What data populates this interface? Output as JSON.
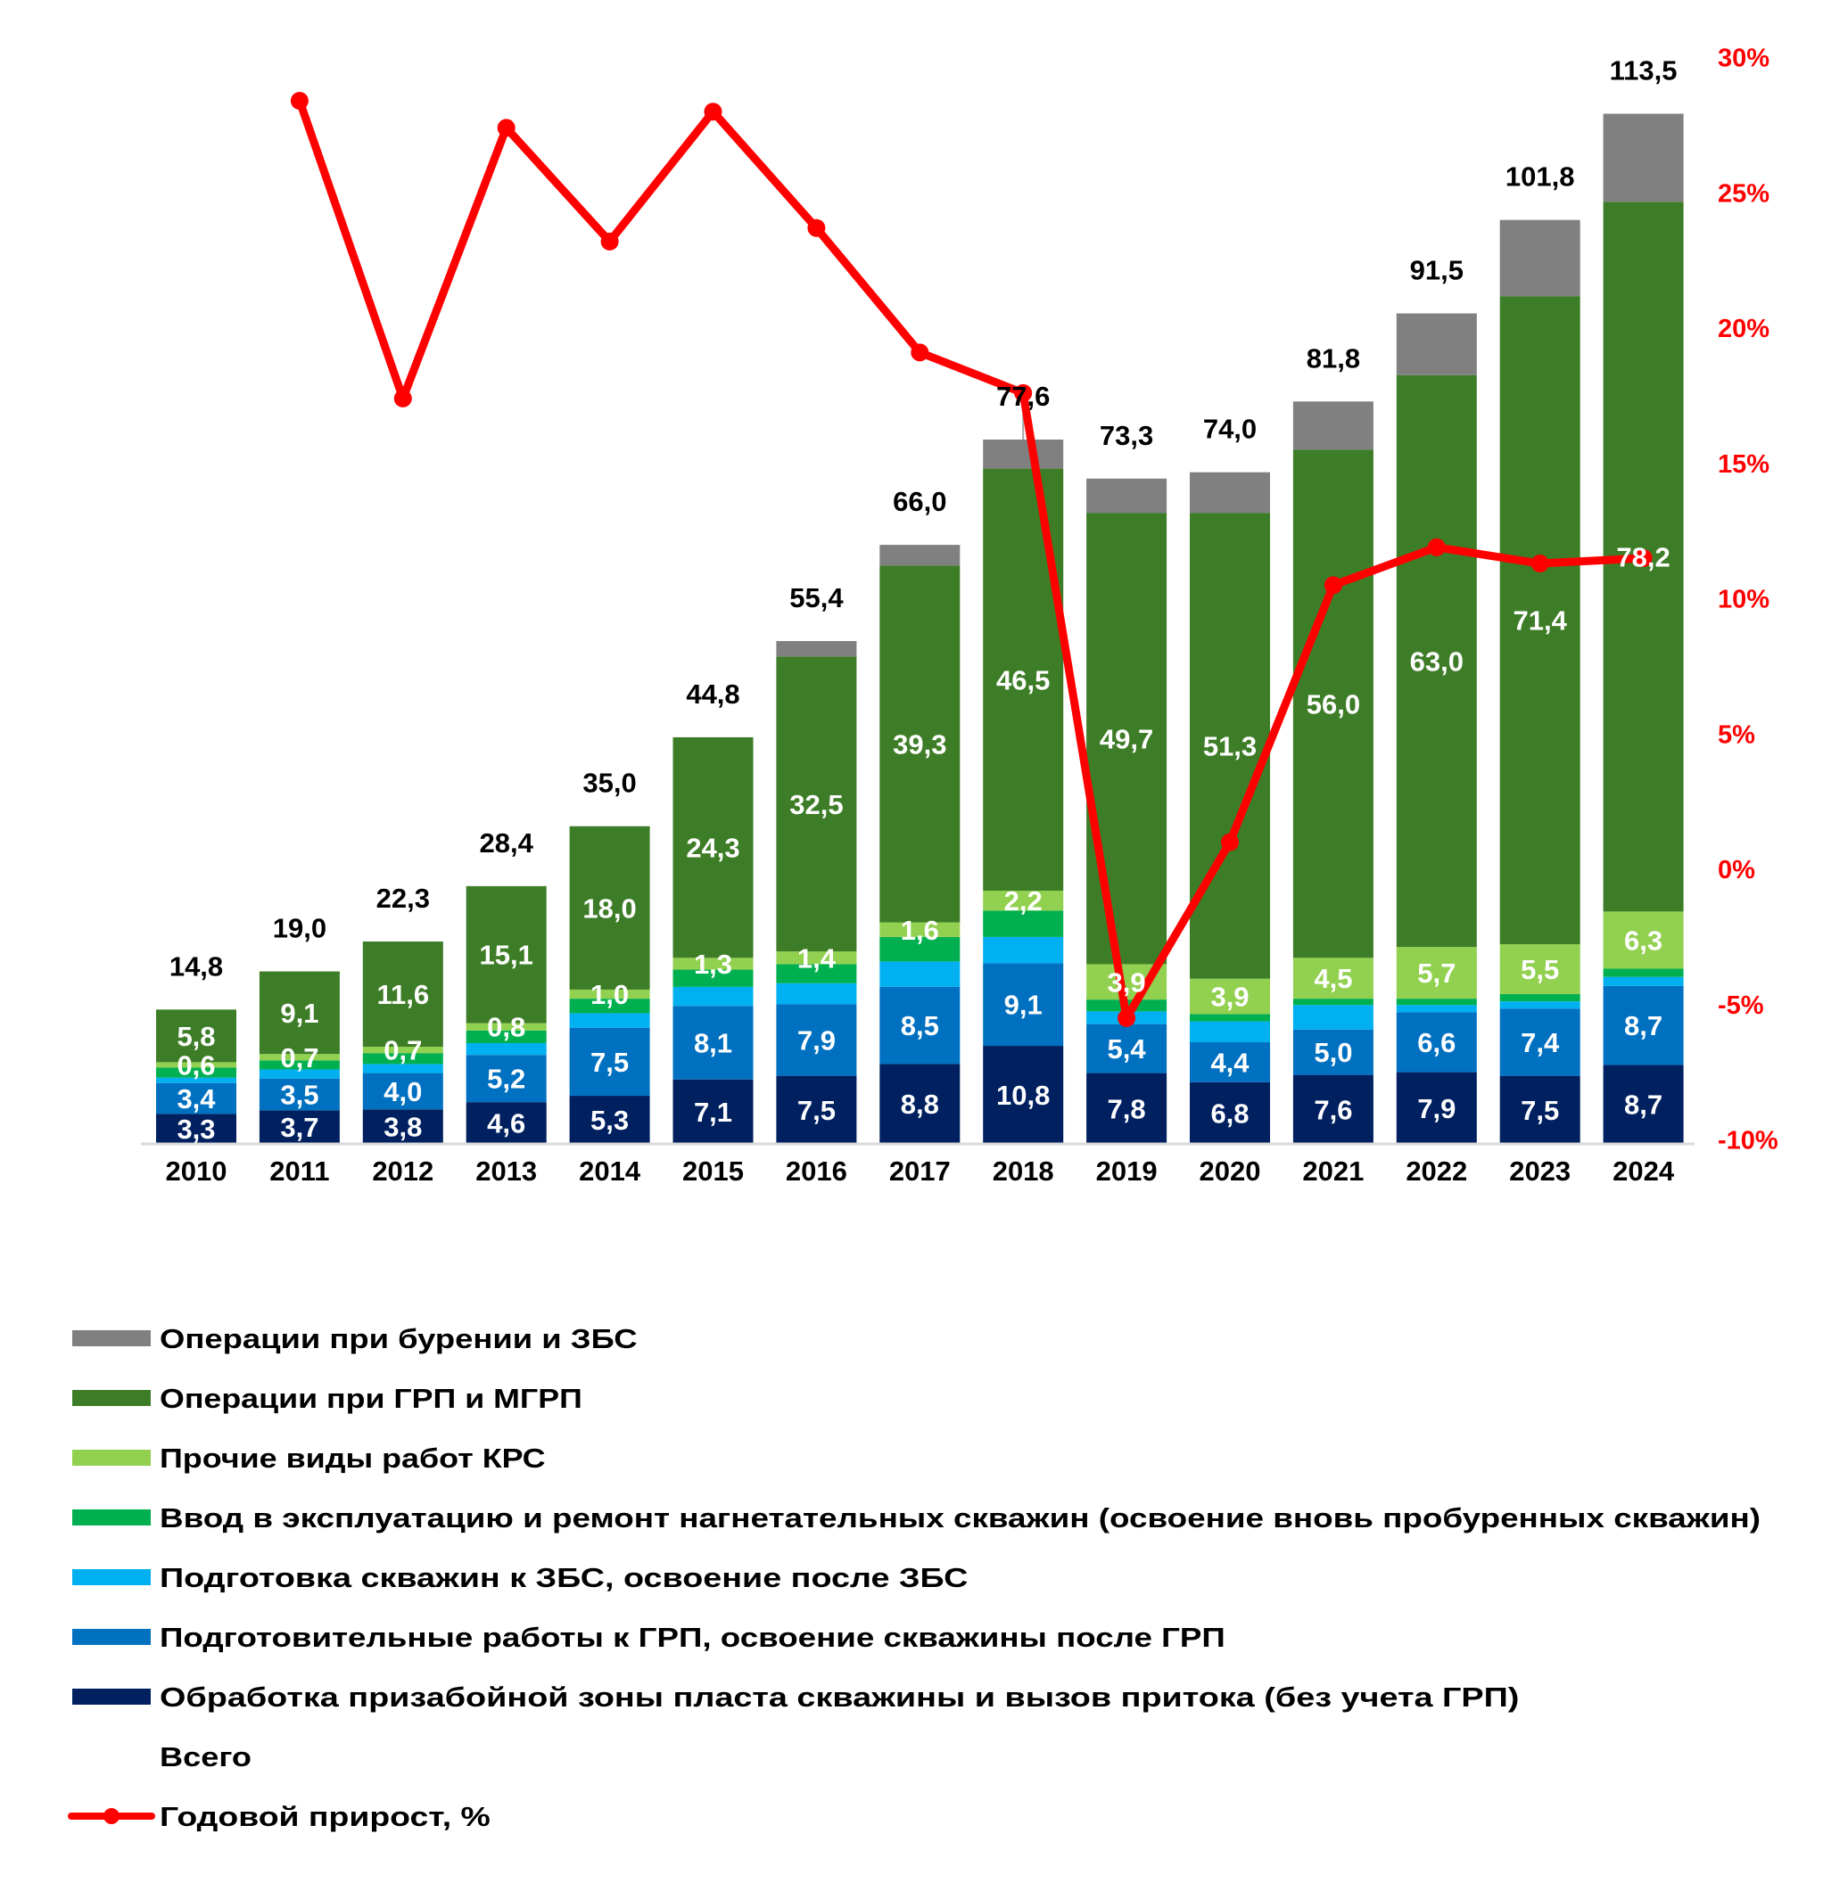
{
  "chart_data": {
    "type": "bar",
    "stacked": true,
    "title": "",
    "xlabel": "",
    "ylabel": "",
    "categories": [
      "2010",
      "2011",
      "2012",
      "2013",
      "2014",
      "2015",
      "2016",
      "2017",
      "2018",
      "2019",
      "2020",
      "2021",
      "2022",
      "2023",
      "2024"
    ],
    "ylim": [
      0,
      120
    ],
    "y2lim": [
      -10,
      30
    ],
    "y2_ticks": [
      "-10%",
      "-5%",
      "0%",
      "5%",
      "10%",
      "15%",
      "20%",
      "25%",
      "30%"
    ],
    "y2_tick_values": [
      -10,
      -5,
      0,
      5,
      10,
      15,
      20,
      25,
      30
    ],
    "grid": false,
    "legend_position": "bottom",
    "series": [
      {
        "name": "Обработка призабойной зоны пласта скважины и вызов притока (без учета ГРП)",
        "color": "#002060",
        "values": [
          3.3,
          3.7,
          3.8,
          4.6,
          5.3,
          7.1,
          7.5,
          8.8,
          10.8,
          7.8,
          6.8,
          7.6,
          7.9,
          7.5,
          8.7
        ],
        "labels": [
          "3,3",
          "3,7",
          "3,8",
          "4,6",
          "5,3",
          "7,1",
          "7,5",
          "8,8",
          "10,8",
          "7,8",
          "6,8",
          "7,6",
          "7,9",
          "7,5",
          "8,7"
        ]
      },
      {
        "name": "Подготовительные работы к ГРП, освоение скважины после ГРП",
        "color": "#0070C0",
        "values": [
          3.4,
          3.5,
          4.0,
          5.2,
          7.5,
          8.1,
          7.9,
          8.5,
          9.1,
          5.4,
          4.4,
          5.0,
          6.6,
          7.4,
          8.7
        ],
        "labels": [
          "3,4",
          "3,5",
          "4,0",
          "5,2",
          "7,5",
          "8,1",
          "7,9",
          "8,5",
          "9,1",
          "5,4",
          "4,4",
          "5,0",
          "6,6",
          "7,4",
          "8,7"
        ]
      },
      {
        "name": "Подготовка скважин к ЗБС, освоение после ЗБС",
        "color": "#00B0F0",
        "values": [
          0.6,
          1.0,
          1.0,
          1.3,
          1.6,
          2.1,
          2.3,
          2.8,
          2.9,
          1.4,
          2.3,
          2.7,
          0.8,
          0.8,
          1.0
        ],
        "labels": [
          "",
          "",
          "",
          "",
          "",
          "",
          "",
          "",
          "",
          "",
          "",
          "",
          "",
          "",
          ""
        ]
      },
      {
        "name": "Ввод в эксплуатацию и ремонт нагнетательных скважин (освоение вновь пробуренных скважин)",
        "color": "#00B050",
        "values": [
          1.1,
          1.0,
          1.2,
          1.4,
          1.6,
          1.9,
          2.1,
          2.7,
          2.9,
          1.3,
          0.8,
          0.7,
          0.7,
          0.8,
          0.9
        ],
        "labels": [
          "",
          "",
          "",
          "",
          "",
          "",
          "",
          "",
          "",
          "",
          "",
          "",
          "",
          "",
          ""
        ]
      },
      {
        "name": "Прочие виды работ КРС",
        "color": "#92D050",
        "values": [
          0.6,
          0.7,
          0.7,
          0.8,
          1.0,
          1.3,
          1.4,
          1.6,
          2.2,
          3.9,
          3.9,
          4.5,
          5.7,
          5.5,
          6.3
        ],
        "labels": [
          "0,6",
          "0,7",
          "0,7",
          "0,8",
          "1,0",
          "1,3",
          "1,4",
          "1,6",
          "2,2",
          "3,9",
          "3,9",
          "4,5",
          "5,7",
          "5,5",
          "6,3"
        ]
      },
      {
        "name": "Операции при ГРП и МГРП",
        "color": "#3E7D27",
        "values": [
          5.8,
          9.1,
          11.6,
          15.1,
          18.0,
          24.3,
          32.5,
          39.3,
          46.5,
          49.7,
          51.3,
          56.0,
          63.0,
          71.4,
          78.2
        ],
        "labels": [
          "5,8",
          "9,1",
          "11,6",
          "15,1",
          "18,0",
          "24,3",
          "32,5",
          "39,3",
          "46,5",
          "49,7",
          "51,3",
          "56,0",
          "63,0",
          "71,4",
          "78,2"
        ]
      },
      {
        "name": "Операции при бурении и ЗБС",
        "color": "#808080",
        "values": [
          0,
          0,
          0,
          0,
          0,
          0,
          1.7,
          2.3,
          3.2,
          3.8,
          4.5,
          5.3,
          6.8,
          8.4,
          9.7
        ],
        "labels": [
          "",
          "",
          "",
          "",
          "",
          "",
          "",
          "",
          "",
          "",
          "",
          "",
          "",
          "",
          ""
        ]
      }
    ],
    "totals": {
      "name": "Всего",
      "values": [
        14.8,
        19.0,
        22.3,
        28.4,
        35.0,
        44.8,
        55.4,
        66.0,
        77.6,
        73.3,
        74.0,
        81.8,
        91.5,
        101.8,
        113.5
      ],
      "labels": [
        "14,8",
        "19,0",
        "22,3",
        "28,4",
        "35,0",
        "44,8",
        "55,4",
        "66,0",
        "77,6",
        "73,3",
        "74,0",
        "81,8",
        "91,5",
        "101,8",
        "113,5"
      ]
    },
    "growth_line": {
      "name": "Годовой прирост, %",
      "axis": "secondary",
      "color": "#FF0000",
      "values": [
        null,
        28.4,
        17.4,
        27.4,
        23.2,
        28.0,
        23.7,
        19.1,
        17.6,
        -5.5,
        1.0,
        10.5,
        11.9,
        11.3,
        11.5
      ]
    },
    "legend": [
      {
        "label": "Операции при бурении и ЗБС",
        "color": "#808080",
        "kind": "swatch"
      },
      {
        "label": "Операции при ГРП и МГРП",
        "color": "#3E7D27",
        "kind": "swatch"
      },
      {
        "label": "Прочие виды работ КРС",
        "color": "#92D050",
        "kind": "swatch"
      },
      {
        "label": "Ввод в эксплуатацию и ремонт нагнетательных скважин (освоение вновь пробуренных скважин)",
        "color": "#00B050",
        "kind": "swatch"
      },
      {
        "label": "Подготовка скважин к ЗБС, освоение после ЗБС",
        "color": "#00B0F0",
        "kind": "swatch"
      },
      {
        "label": "Подготовительные работы к ГРП, освоение скважины после ГРП",
        "color": "#0070C0",
        "kind": "swatch"
      },
      {
        "label": "Обработка призабойной зоны пласта скважины и вызов притока (без учета ГРП)",
        "color": "#002060",
        "kind": "swatch"
      },
      {
        "label": "Всего",
        "color": "",
        "kind": "none"
      },
      {
        "label": "Годовой прирост, %",
        "color": "#FF0000",
        "kind": "line"
      }
    ]
  }
}
